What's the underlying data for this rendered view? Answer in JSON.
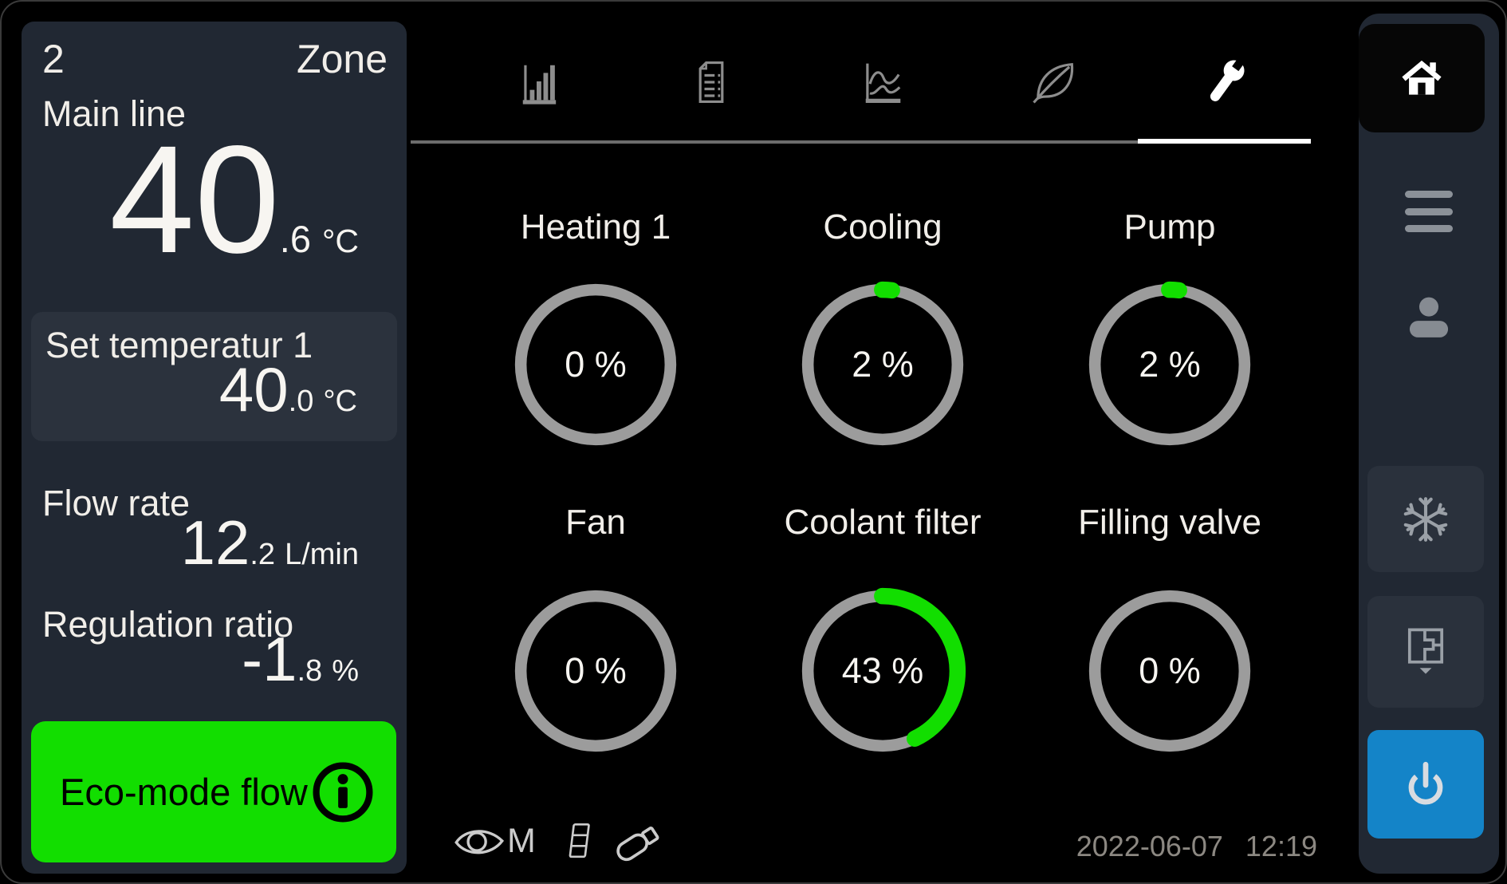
{
  "colors": {
    "background": "#000000",
    "panel_bg": "#212833",
    "box_bg": "#2b323d",
    "button_bg": "#2a313c",
    "accent_green": "#12de00",
    "accent_blue": "#1484c8",
    "ring_gray": "#9c9c9c",
    "text_primary": "#f1eee9",
    "text_value": "#f7f5f1",
    "icon_gray": "#9aa0a7",
    "tab_icon_gray": "#8d8d8d",
    "underline_gray": "#6c6c6c",
    "icon_light": "#cbcbcb",
    "timestamp_text": "#8c8882",
    "home_bg": "#060606"
  },
  "zone_panel": {
    "zone_number": "2",
    "zone_label": "Zone",
    "main_line": {
      "label": "Main line",
      "int": "40",
      "dec": ".6",
      "unit": "°C"
    },
    "set_temperature": {
      "label": "Set temperatur 1",
      "int": "40",
      "dec": ".0",
      "unit": "°C"
    },
    "flow_rate": {
      "label": "Flow rate",
      "int": "12",
      "dec": ".2",
      "unit": "L/min"
    },
    "regulation_ratio": {
      "label": "Regulation ratio",
      "int": "-1",
      "dec": ".8",
      "unit": "%"
    },
    "eco_button": {
      "label": "Eco-mode flow"
    }
  },
  "tabs": [
    {
      "name": "statistics",
      "icon": "bar-chart-icon",
      "active": false
    },
    {
      "name": "report",
      "icon": "document-icon",
      "active": false
    },
    {
      "name": "trend",
      "icon": "trend-chart-icon",
      "active": false
    },
    {
      "name": "eco",
      "icon": "leaf-icon",
      "active": false
    },
    {
      "name": "service",
      "icon": "wrench-icon",
      "active": true
    }
  ],
  "gauges": [
    {
      "label": "Heating 1",
      "value": 0,
      "display": "0 %"
    },
    {
      "label": "Cooling",
      "value": 2,
      "display": "2 %"
    },
    {
      "label": "Pump",
      "value": 2,
      "display": "2 %"
    },
    {
      "label": "Fan",
      "value": 0,
      "display": "0 %"
    },
    {
      "label": "Coolant filter",
      "value": 43,
      "display": "43 %"
    },
    {
      "label": "Filling valve",
      "value": 0,
      "display": "0 %"
    }
  ],
  "status_bar": {
    "monitor_letter": "M",
    "date": "2022-06-07",
    "time": "12:19"
  },
  "sidebar": {
    "items": [
      "home",
      "menu",
      "user",
      "defrost",
      "zones",
      "power"
    ]
  }
}
